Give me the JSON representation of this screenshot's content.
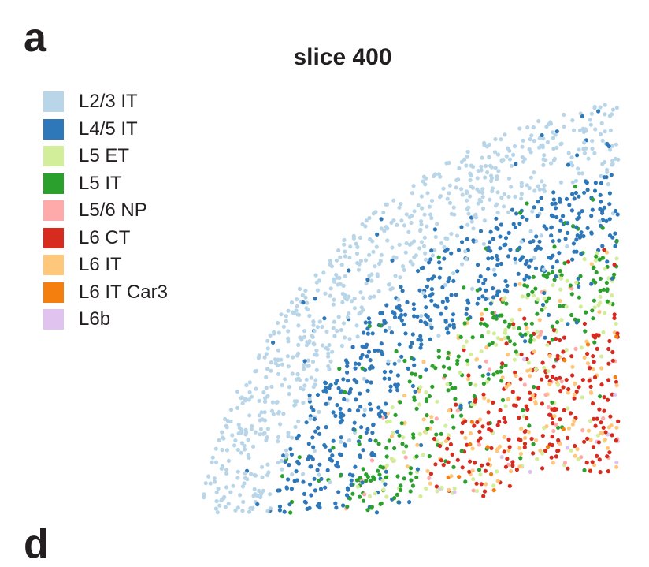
{
  "panel_labels": {
    "top": "a",
    "bottom": "d"
  },
  "chart_data": {
    "type": "scatter",
    "title": "slice 400",
    "xlabel": "",
    "ylabel": "",
    "legend_position": "top-left",
    "grid": false,
    "axes_visible": false,
    "series": [
      {
        "name": "L2/3 IT",
        "color": "#b9d5e8"
      },
      {
        "name": "L4/5 IT",
        "color": "#2e78b9"
      },
      {
        "name": "L5 ET",
        "color": "#d3ee9b"
      },
      {
        "name": "L5 IT",
        "color": "#2ca02c"
      },
      {
        "name": "L5/6 NP",
        "color": "#ffaaaa"
      },
      {
        "name": "L6 CT",
        "color": "#d62b1e"
      },
      {
        "name": "L6 IT",
        "color": "#ffc77a"
      },
      {
        "name": "L6 IT Car3",
        "color": "#f57f0e"
      },
      {
        "name": "L6b",
        "color": "#e0c3ef"
      }
    ]
  }
}
